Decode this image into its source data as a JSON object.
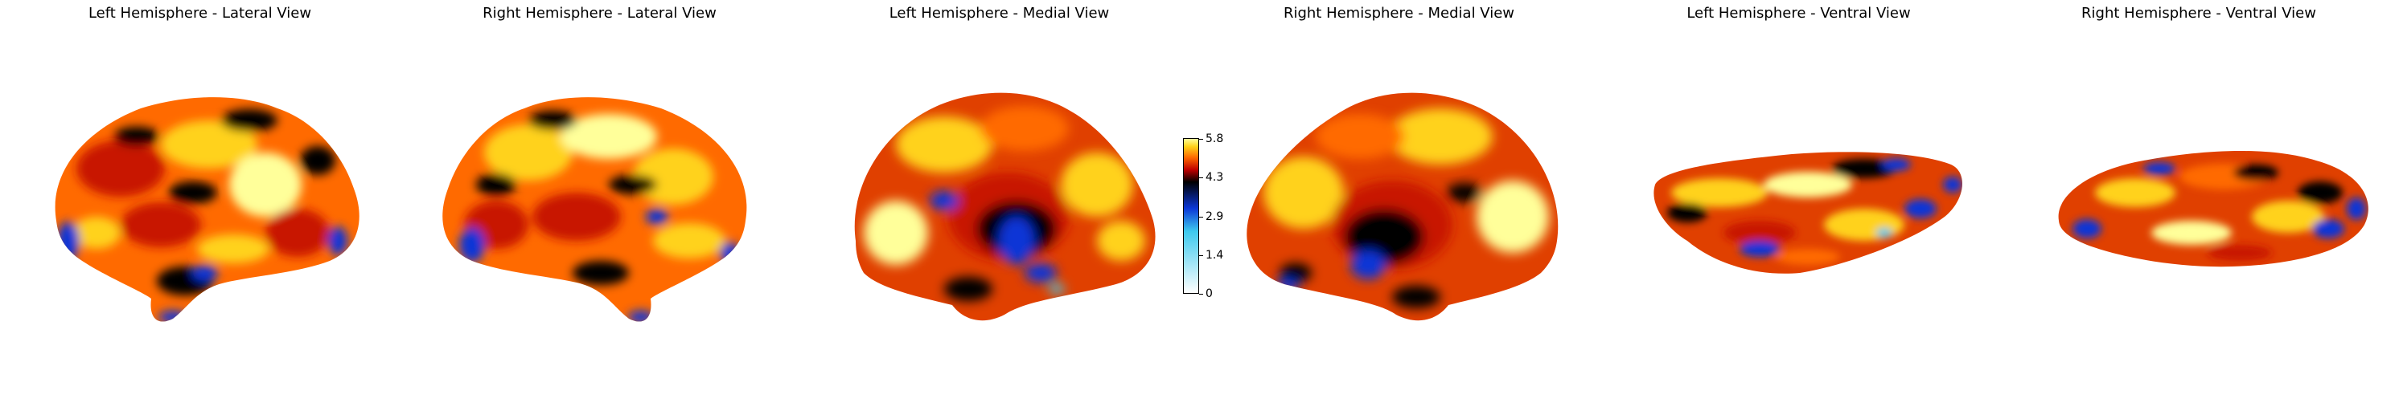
{
  "views": [
    {
      "title": "Left Hemisphere - Lateral View"
    },
    {
      "title": "Right Hemisphere - Lateral View"
    },
    {
      "title": "Left Hemisphere - Medial View"
    },
    {
      "title": "Right Hemisphere - Medial View"
    },
    {
      "title": "Left Hemisphere - Ventral View"
    },
    {
      "title": "Right Hemisphere - Ventral View"
    }
  ],
  "colorbar": {
    "min": 0,
    "max": 5.8,
    "ticks": [
      "0",
      "1.4",
      "2.9",
      "4.3",
      "5.8"
    ],
    "colors": [
      "#ffffff",
      "#3ec9ee",
      "#0b36d6",
      "#000000",
      "#c00000",
      "#ff6a00",
      "#ffd21a",
      "#ffff9a"
    ]
  },
  "palette": {
    "red": "#c81400",
    "orange": "#ff6a00",
    "yellow": "#ffd21a",
    "pale_yellow": "#ffff9a",
    "dark": "#000000",
    "blue": "#0b36d6",
    "cyan": "#3ec9ee"
  }
}
